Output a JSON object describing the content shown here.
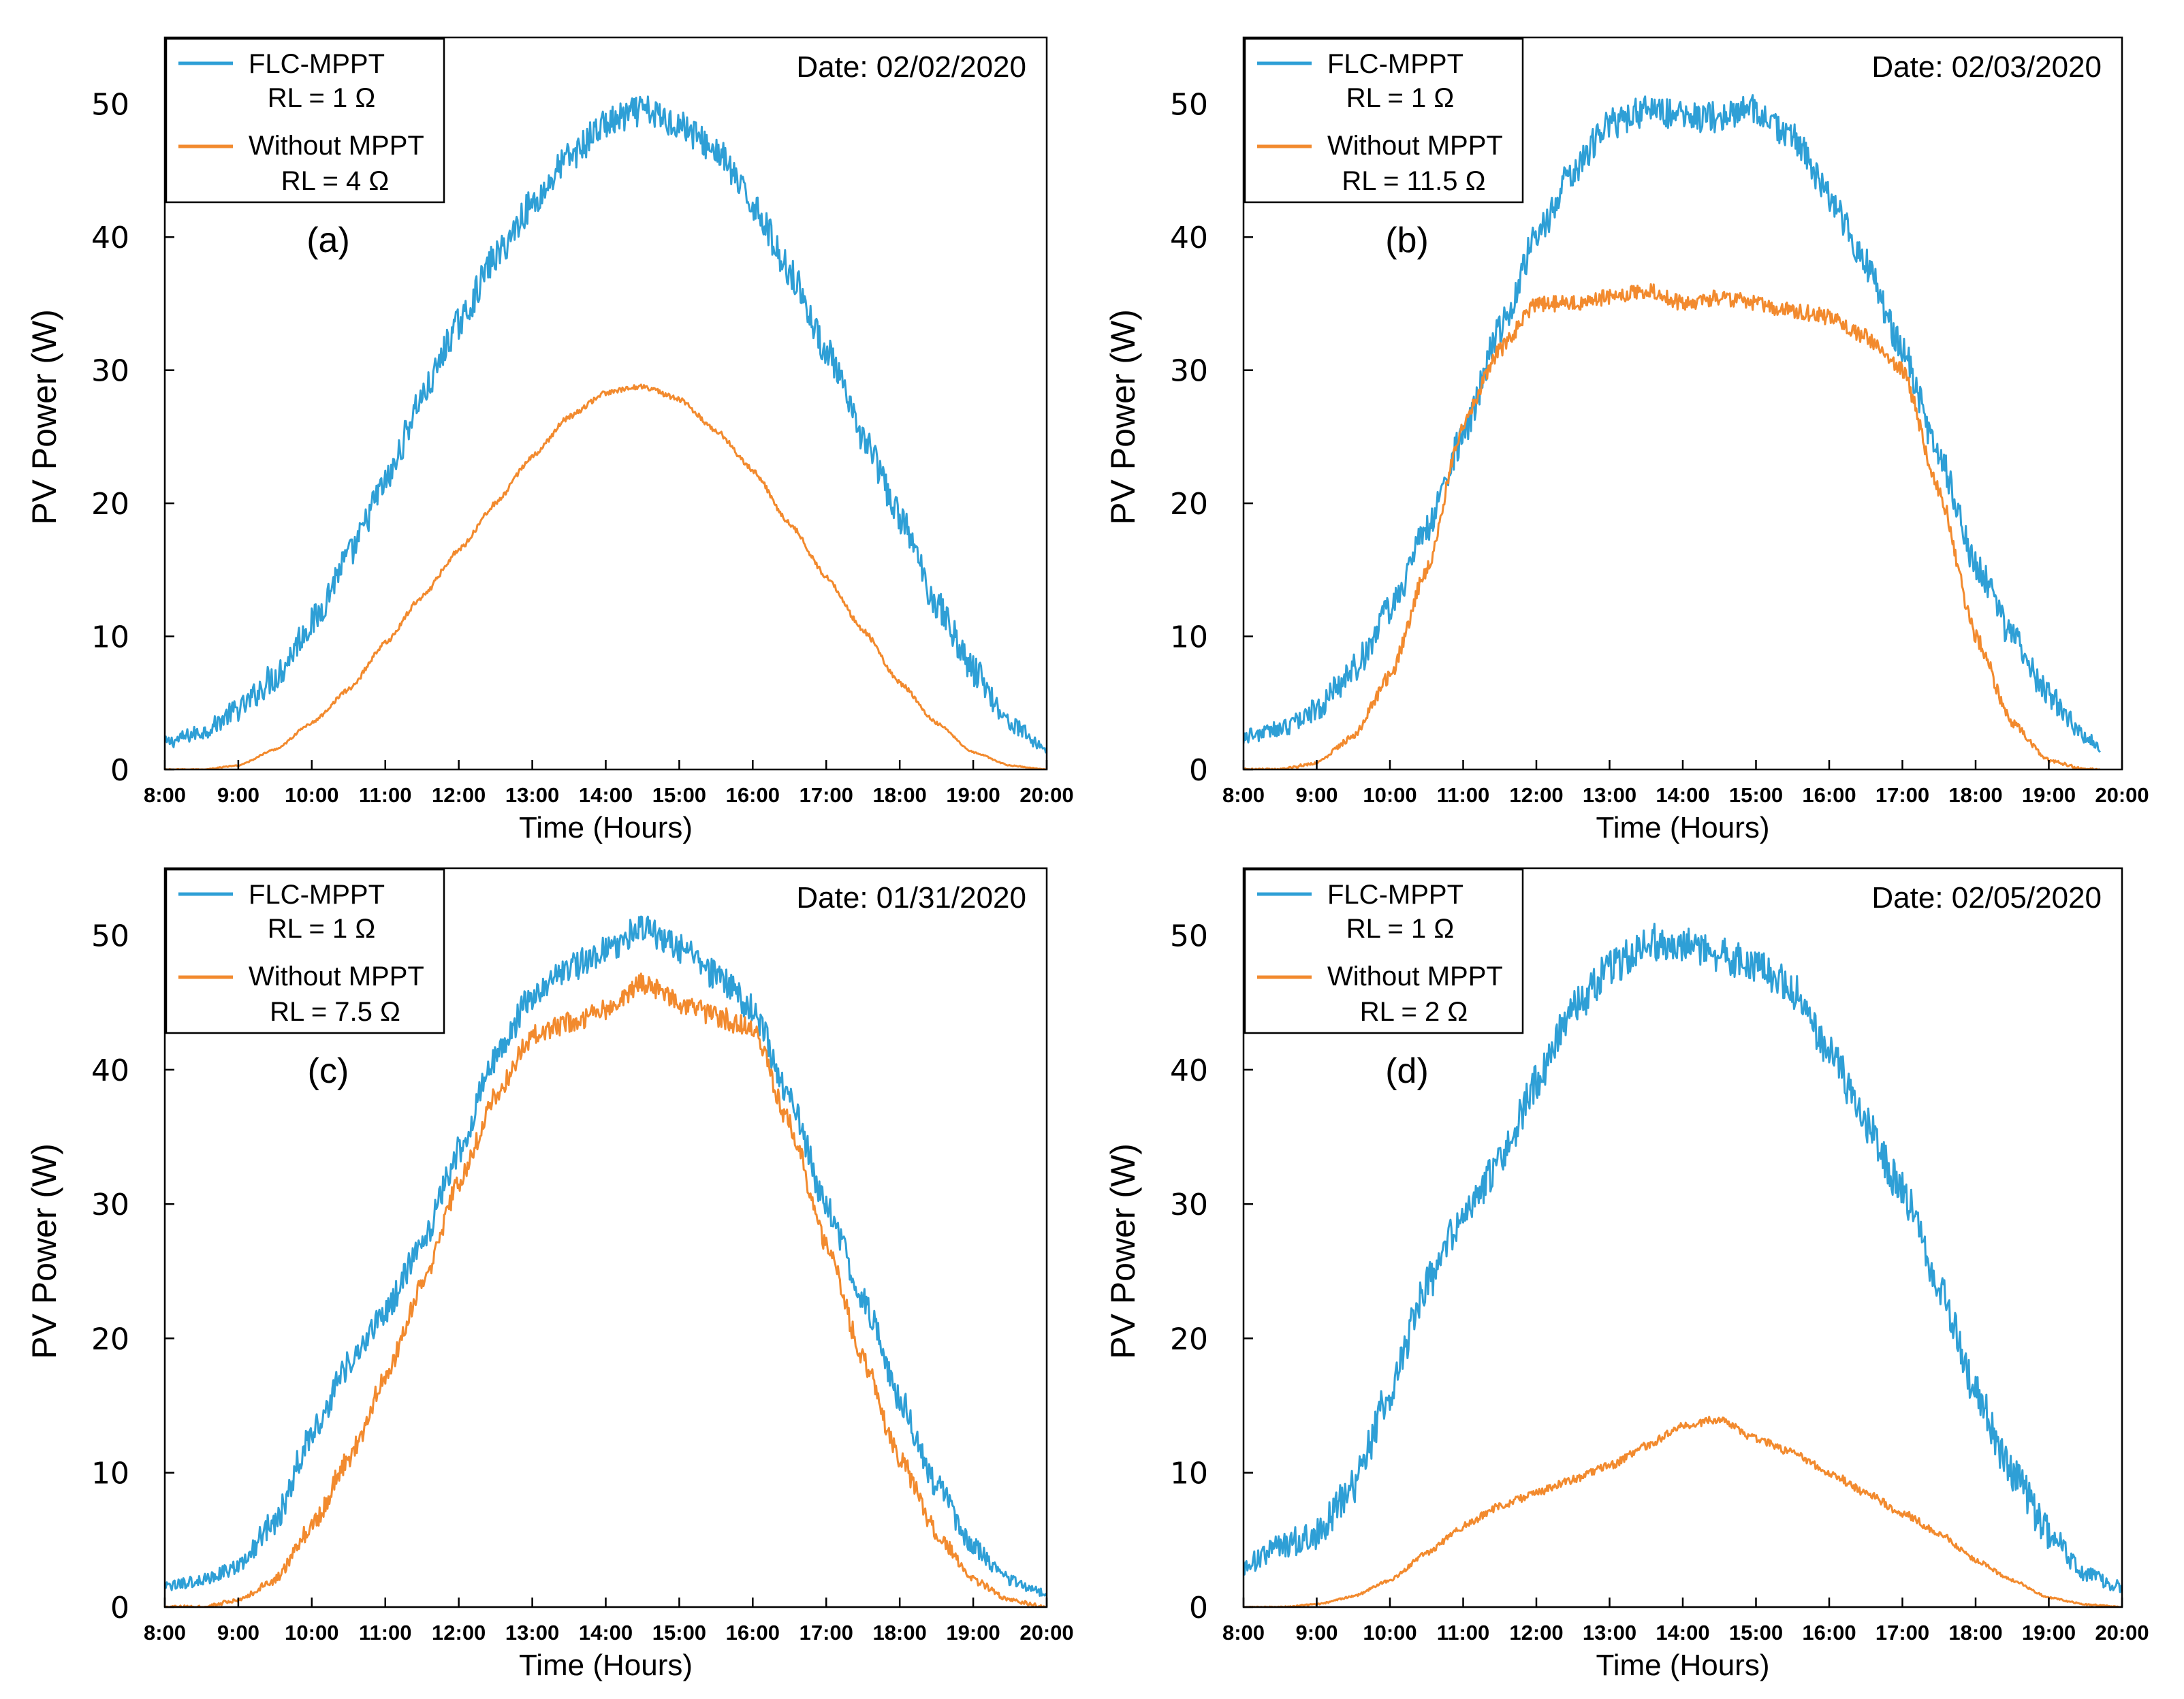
{
  "figure": {
    "description": "Four-panel PV power comparison"
  },
  "chart_data": [
    {
      "type": "line",
      "panel_label": "(a)",
      "date_label": "Date: 02/02/2020",
      "xlabel": "Time (Hours)",
      "ylabel": "PV Power (W)",
      "xlim": [
        8,
        20
      ],
      "ylim": [
        0,
        55
      ],
      "x_ticks": [
        "8:00",
        "9:00",
        "10:00",
        "11:00",
        "12:00",
        "13:00",
        "14:00",
        "15:00",
        "16:00",
        "17:00",
        "18:00",
        "19:00",
        "20:00"
      ],
      "y_ticks": [
        0,
        10,
        20,
        30,
        40,
        50
      ],
      "legend": {
        "position": "top-left",
        "entries": [
          "FLC-MPPT",
          "RL = 1 Ω",
          "Without MPPT",
          "RL = 4 Ω"
        ]
      },
      "series": [
        {
          "name": "FLC-MPPT RL = 1 Ω",
          "color": "#2e9fd6",
          "noise": 1.2,
          "x": [
            8,
            8.5,
            9,
            9.5,
            10,
            10.5,
            11,
            11.5,
            12,
            12.5,
            13,
            13.5,
            14,
            14.5,
            15,
            15.5,
            16,
            16.5,
            17,
            17.5,
            18,
            18.5,
            19,
            19.5,
            20
          ],
          "values": [
            2,
            2.8,
            4.5,
            7,
            11,
            16,
            21.5,
            28,
            33.5,
            38.5,
            42.5,
            46,
            48.5,
            49.5,
            48.5,
            46.5,
            42.5,
            37.5,
            31.5,
            25,
            19,
            12.5,
            7.5,
            3.5,
            1.5
          ]
        },
        {
          "name": "Without MPPT RL = 4 Ω",
          "color": "#f28a2e",
          "noise": 0.2,
          "x": [
            8,
            8.5,
            9,
            9.5,
            10,
            10.5,
            11,
            11.5,
            12,
            12.5,
            13,
            13.5,
            14,
            14.5,
            15,
            15.5,
            16,
            16.5,
            17,
            17.5,
            18,
            18.5,
            19,
            19.5,
            20
          ],
          "values": [
            0,
            0,
            0.3,
            1.5,
            3.5,
            6,
            9.5,
            13,
            16.5,
            20,
            23.5,
            26.5,
            28.3,
            28.8,
            27.8,
            25.5,
            22.5,
            18.5,
            14.5,
            10.5,
            6.5,
            3.5,
            1.3,
            0.3,
            0
          ]
        }
      ]
    },
    {
      "type": "line",
      "panel_label": "(b)",
      "date_label": "Date: 02/03/2020",
      "xlabel": "Time (Hours)",
      "ylabel": "PV Power (W)",
      "xlim": [
        8,
        20
      ],
      "ylim": [
        0,
        55
      ],
      "x_ticks": [
        "8:00",
        "9:00",
        "10:00",
        "11:00",
        "12:00",
        "13:00",
        "14:00",
        "15:00",
        "16:00",
        "17:00",
        "18:00",
        "19:00",
        "20:00"
      ],
      "y_ticks": [
        0,
        10,
        20,
        30,
        40,
        50
      ],
      "legend": {
        "position": "top-left",
        "entries": [
          "FLC-MPPT",
          "RL = 1 Ω",
          "Without MPPT",
          "RL = 11.5 Ω"
        ]
      },
      "series": [
        {
          "name": "FLC-MPPT RL = 1 Ω",
          "color": "#2e9fd6",
          "noise": 1.2,
          "x": [
            8,
            8.5,
            9,
            9.5,
            10,
            10.5,
            11,
            11.5,
            12,
            12.5,
            13,
            13.5,
            14,
            14.5,
            15,
            15.5,
            16,
            16.5,
            17,
            17.5,
            18,
            18.5,
            19,
            19.5,
            19.7
          ],
          "values": [
            2.5,
            3,
            4.5,
            7.5,
            12,
            18,
            25,
            33,
            40,
            45,
            48.5,
            49.5,
            49,
            49,
            49.5,
            47.5,
            43,
            38,
            31.5,
            23.5,
            15.5,
            10,
            5.5,
            2.5,
            1.5
          ]
        },
        {
          "name": "Without MPPT RL = 11.5 Ω",
          "color": "#f28a2e",
          "noise": 0.6,
          "x": [
            8,
            8.5,
            9,
            9.5,
            10,
            10.5,
            11,
            11.5,
            12,
            12.5,
            13,
            13.5,
            14,
            14.5,
            15,
            15.5,
            16,
            16.5,
            17,
            17.5,
            18,
            18.5,
            19,
            19.5,
            19.7
          ],
          "values": [
            0,
            0,
            0.5,
            2.5,
            7,
            15,
            26,
            31.5,
            35,
            35,
            35.5,
            36,
            35,
            35.5,
            35,
            34.5,
            34,
            32.5,
            30,
            21,
            10,
            3.5,
            0.7,
            0,
            0
          ]
        }
      ]
    },
    {
      "type": "line",
      "panel_label": "(c)",
      "date_label": "Date: 01/31/2020",
      "xlabel": "Time (Hours)",
      "ylabel": "PV Power (W)",
      "xlim": [
        8,
        20
      ],
      "ylim": [
        0,
        55
      ],
      "x_ticks": [
        "8:00",
        "9:00",
        "10:00",
        "11:00",
        "12:00",
        "13:00",
        "14:00",
        "15:00",
        "16:00",
        "17:00",
        "18:00",
        "19:00",
        "20:00"
      ],
      "y_ticks": [
        0,
        10,
        20,
        30,
        40,
        50
      ],
      "legend": {
        "position": "top-left",
        "entries": [
          "FLC-MPPT",
          "RL = 1 Ω",
          "Without MPPT",
          "RL = 7.5 Ω"
        ]
      },
      "series": [
        {
          "name": "FLC-MPPT RL = 1 Ω",
          "color": "#2e9fd6",
          "noise": 1.1,
          "x": [
            8,
            8.5,
            9,
            9.5,
            10,
            10.5,
            11,
            11.5,
            12,
            12.5,
            13,
            13.5,
            14,
            14.5,
            15,
            15.5,
            16,
            16.5,
            17,
            17.5,
            18,
            18.5,
            19,
            19.5,
            20
          ],
          "values": [
            1.5,
            2,
            3,
            6.5,
            13,
            18,
            22,
            27,
            34,
            41,
            45.5,
            47.5,
            49,
            50.5,
            49,
            47,
            44.5,
            38,
            30,
            23,
            15.5,
            9,
            4.5,
            2,
            1
          ]
        },
        {
          "name": "Without MPPT RL = 7.5 Ω",
          "color": "#f28a2e",
          "noise": 0.8,
          "x": [
            8,
            8.5,
            9,
            9.5,
            10,
            10.5,
            11,
            11.5,
            12,
            12.5,
            13,
            13.5,
            14,
            14.5,
            15,
            15.5,
            16,
            16.5,
            17,
            17.5,
            18,
            18.5,
            19,
            19.5,
            20
          ],
          "values": [
            0,
            0,
            0.5,
            2,
            6,
            11,
            17,
            24,
            31.5,
            38,
            42.5,
            43.5,
            44.5,
            46.5,
            45,
            44,
            43,
            36,
            27,
            18.5,
            11,
            5.5,
            2,
            0.5,
            0
          ]
        }
      ]
    },
    {
      "type": "line",
      "panel_label": "(d)",
      "date_label": "Date: 02/05/2020",
      "xlabel": "Time (Hours)",
      "ylabel": "PV Power (W)",
      "xlim": [
        8,
        20
      ],
      "ylim": [
        0,
        55
      ],
      "x_ticks": [
        "8:00",
        "9:00",
        "10:00",
        "11:00",
        "12:00",
        "13:00",
        "14:00",
        "15:00",
        "16:00",
        "17:00",
        "18:00",
        "19:00",
        "20:00"
      ],
      "y_ticks": [
        0,
        10,
        20,
        30,
        40,
        50
      ],
      "legend": {
        "position": "top-left",
        "entries": [
          "FLC-MPPT",
          "RL = 1 Ω",
          "Without MPPT",
          "RL = 2 Ω"
        ]
      },
      "series": [
        {
          "name": "FLC-MPPT RL = 1 Ω",
          "color": "#2e9fd6",
          "noise": 1.4,
          "x": [
            8,
            8.5,
            9,
            9.5,
            10,
            10.5,
            11,
            11.5,
            12,
            12.5,
            13,
            13.5,
            14,
            14.5,
            15,
            15.5,
            16,
            16.5,
            17,
            17.5,
            18,
            18.5,
            19,
            19.5,
            20
          ],
          "values": [
            3,
            4.5,
            5.5,
            9,
            16,
            24,
            29,
            33,
            39,
            44.5,
            47.5,
            49.5,
            49.5,
            48.5,
            48,
            46,
            41.5,
            36,
            31,
            24,
            16,
            10,
            5.5,
            2.5,
            1.5
          ]
        },
        {
          "name": "Without MPPT RL = 2 Ω",
          "color": "#f28a2e",
          "noise": 0.3,
          "x": [
            8,
            8.5,
            9,
            9.5,
            10,
            10.5,
            11,
            11.5,
            12,
            12.5,
            13,
            13.5,
            14,
            14.5,
            15,
            15.5,
            16,
            16.5,
            17,
            17.5,
            18,
            18.5,
            19,
            19.5,
            20
          ],
          "values": [
            0,
            0,
            0.2,
            0.8,
            2,
            4,
            6,
            7.5,
            8.5,
            9.5,
            10.5,
            12,
            13.5,
            14,
            12.5,
            11.5,
            10,
            8.5,
            7,
            5.5,
            3.5,
            2,
            0.7,
            0.2,
            0
          ]
        }
      ]
    }
  ]
}
